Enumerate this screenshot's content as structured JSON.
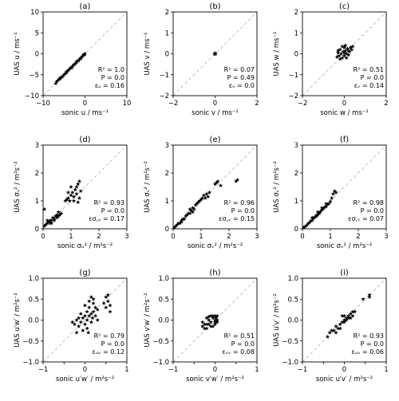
{
  "chart_data": [
    {
      "type": "scatter",
      "panel": "(a)",
      "xlabel": "sonic u / ms⁻¹",
      "ylabel": "UAS u / ms⁻¹",
      "xlim": [
        -10,
        10
      ],
      "ylim": [
        -10,
        10
      ],
      "xticks": [
        -10,
        0,
        10
      ],
      "yticks": [
        -10,
        -5,
        0,
        5,
        10
      ],
      "xticklabels": [
        "−10",
        "0",
        "10"
      ],
      "yticklabels": [
        "−10",
        "−5",
        "0",
        "5",
        "10"
      ],
      "stats": [
        "R² = 1.0",
        "P = 0.0",
        "εᵤ = 0.16"
      ],
      "points": [
        [
          -7.0,
          -7.1
        ],
        [
          -6.8,
          -6.7
        ],
        [
          -6.5,
          -6.4
        ],
        [
          -6.2,
          -6.1
        ],
        [
          -6.0,
          -6.0
        ],
        [
          -5.7,
          -5.6
        ],
        [
          -5.4,
          -5.5
        ],
        [
          -5.1,
          -5.1
        ],
        [
          -4.8,
          -4.8
        ],
        [
          -4.5,
          -4.6
        ],
        [
          -4.2,
          -4.1
        ],
        [
          -3.9,
          -3.9
        ],
        [
          -3.6,
          -3.5
        ],
        [
          -3.3,
          -3.4
        ],
        [
          -3.0,
          -3.0
        ],
        [
          -2.7,
          -2.6
        ],
        [
          -2.4,
          -2.5
        ],
        [
          -2.1,
          -2.1
        ],
        [
          -1.8,
          -1.7
        ],
        [
          -1.5,
          -1.6
        ],
        [
          -1.2,
          -1.2
        ],
        [
          -0.9,
          -0.9
        ],
        [
          -0.6,
          -0.6
        ],
        [
          -0.4,
          -0.3
        ],
        [
          -0.2,
          -0.2
        ],
        [
          -0.1,
          -0.1
        ],
        [
          0.0,
          0.0
        ],
        [
          -5.9,
          -5.8
        ],
        [
          -4.4,
          -4.3
        ],
        [
          -3.1,
          -3.2
        ],
        [
          -2.0,
          -1.9
        ],
        [
          -1.0,
          -1.1
        ]
      ]
    },
    {
      "type": "scatter",
      "panel": "(b)",
      "xlabel": "sonic v / ms⁻¹",
      "ylabel": "UAS v / ms⁻¹",
      "xlim": [
        -2,
        2
      ],
      "ylim": [
        -2,
        2
      ],
      "xticks": [
        -2,
        0,
        2
      ],
      "yticks": [
        -2,
        -1,
        0,
        1,
        2
      ],
      "xticklabels": [
        "−2",
        "0",
        "2"
      ],
      "yticklabels": [
        "−2",
        "−1",
        "0",
        "1",
        "2"
      ],
      "stats": [
        "R² = 0.07",
        "P = 0.49",
        "εᵥ = 0.0"
      ],
      "points": [
        [
          0.0,
          0.0
        ],
        [
          0.02,
          0.01
        ],
        [
          -0.01,
          0.02
        ],
        [
          0.01,
          -0.01
        ],
        [
          -0.02,
          -0.01
        ],
        [
          0.0,
          0.02
        ]
      ]
    },
    {
      "type": "scatter",
      "panel": "(c)",
      "xlabel": "sonic w / ms⁻¹",
      "ylabel": "UAS w / ms⁻¹",
      "xlim": [
        -2,
        2
      ],
      "ylim": [
        -2,
        2
      ],
      "xticks": [
        -2,
        0,
        2
      ],
      "yticks": [
        -2,
        -1,
        0,
        1,
        2
      ],
      "xticklabels": [
        "−2",
        "0",
        "2"
      ],
      "yticklabels": [
        "−2",
        "−1",
        "0",
        "1",
        "2"
      ],
      "stats": [
        "R² = 0.51",
        "P = 0.0",
        "εᵥ = 0.14"
      ],
      "points": [
        [
          -0.35,
          -0.15
        ],
        [
          -0.3,
          0.05
        ],
        [
          -0.25,
          -0.1
        ],
        [
          -0.2,
          0.2
        ],
        [
          -0.15,
          0.0
        ],
        [
          -0.1,
          -0.2
        ],
        [
          -0.05,
          0.1
        ],
        [
          0.0,
          0.3
        ],
        [
          0.0,
          -0.1
        ],
        [
          0.05,
          0.15
        ],
        [
          0.1,
          0.0
        ],
        [
          0.15,
          0.25
        ],
        [
          0.2,
          -0.05
        ],
        [
          -0.1,
          0.35
        ],
        [
          0.25,
          0.1
        ],
        [
          0.3,
          0.3
        ],
        [
          0.35,
          0.2
        ],
        [
          -0.2,
          -0.25
        ],
        [
          0.05,
          0.4
        ],
        [
          0.1,
          -0.2
        ],
        [
          0.4,
          0.35
        ],
        [
          -0.3,
          0.15
        ],
        [
          0.2,
          0.15
        ],
        [
          0.0,
          0.05
        ]
      ]
    },
    {
      "type": "scatter",
      "panel": "(d)",
      "xlabel": "sonic σᵤ² / m²s⁻²",
      "ylabel": "UAS σᵤ² / m²s⁻²",
      "xlim": [
        0,
        3
      ],
      "ylim": [
        0,
        3
      ],
      "xticks": [
        0,
        1,
        2,
        3
      ],
      "yticks": [
        0,
        1,
        2,
        3
      ],
      "xticklabels": [
        "0",
        "1",
        "2",
        "3"
      ],
      "yticklabels": [
        "0",
        "1",
        "2",
        "3"
      ],
      "stats": [
        "R² = 0.93",
        "P = 0.0",
        "εσ,ᵤ = 0.17"
      ],
      "points": [
        [
          0.05,
          0.7
        ],
        [
          0.05,
          0.1
        ],
        [
          0.1,
          0.15
        ],
        [
          0.15,
          0.2
        ],
        [
          0.2,
          0.25
        ],
        [
          0.25,
          0.3
        ],
        [
          0.3,
          0.3
        ],
        [
          0.35,
          0.4
        ],
        [
          0.4,
          0.35
        ],
        [
          0.45,
          0.45
        ],
        [
          0.5,
          0.5
        ],
        [
          0.55,
          0.45
        ],
        [
          0.6,
          0.5
        ],
        [
          0.65,
          0.55
        ],
        [
          0.3,
          0.2
        ],
        [
          0.4,
          0.3
        ],
        [
          0.5,
          0.4
        ],
        [
          0.55,
          0.6
        ],
        [
          0.15,
          0.3
        ],
        [
          0.25,
          0.2
        ],
        [
          0.8,
          1.0
        ],
        [
          0.85,
          1.05
        ],
        [
          0.9,
          1.1
        ],
        [
          0.95,
          1.0
        ],
        [
          1.0,
          1.2
        ],
        [
          1.05,
          1.3
        ],
        [
          1.1,
          1.15
        ],
        [
          1.15,
          1.4
        ],
        [
          1.2,
          1.25
        ],
        [
          1.25,
          1.6
        ],
        [
          1.3,
          1.1
        ],
        [
          1.35,
          1.35
        ],
        [
          1.1,
          1.0
        ],
        [
          1.0,
          1.5
        ],
        [
          1.2,
          1.5
        ],
        [
          0.9,
          1.3
        ],
        [
          1.3,
          1.7
        ],
        [
          1.25,
          0.95
        ]
      ]
    },
    {
      "type": "scatter",
      "panel": "(e)",
      "xlabel": "sonic σᵥ² / m²s⁻²",
      "ylabel": "UAS σᵥ² / m²s⁻²",
      "xlim": [
        0,
        3
      ],
      "ylim": [
        0,
        3
      ],
      "xticks": [
        0,
        1,
        2,
        3
      ],
      "yticks": [
        0,
        1,
        2,
        3
      ],
      "xticklabels": [
        "0",
        "1",
        "2",
        "3"
      ],
      "yticklabels": [
        "0",
        "1",
        "2",
        "3"
      ],
      "stats": [
        "R² = 0.96",
        "P = 0.0",
        "εσ,ᵥ = 0.15"
      ],
      "points": [
        [
          0.05,
          0.05
        ],
        [
          0.1,
          0.1
        ],
        [
          0.15,
          0.15
        ],
        [
          0.2,
          0.2
        ],
        [
          0.25,
          0.2
        ],
        [
          0.3,
          0.3
        ],
        [
          0.35,
          0.35
        ],
        [
          0.4,
          0.35
        ],
        [
          0.45,
          0.45
        ],
        [
          0.5,
          0.5
        ],
        [
          0.55,
          0.55
        ],
        [
          0.6,
          0.55
        ],
        [
          0.65,
          0.65
        ],
        [
          0.7,
          0.75
        ],
        [
          0.75,
          0.7
        ],
        [
          0.8,
          0.85
        ],
        [
          0.85,
          0.9
        ],
        [
          0.9,
          0.95
        ],
        [
          1.0,
          1.05
        ],
        [
          1.05,
          1.1
        ],
        [
          1.1,
          1.2
        ],
        [
          1.15,
          1.1
        ],
        [
          1.2,
          1.25
        ],
        [
          1.25,
          1.15
        ],
        [
          1.3,
          1.3
        ],
        [
          1.5,
          1.6
        ],
        [
          1.55,
          1.65
        ],
        [
          1.6,
          1.7
        ],
        [
          1.7,
          1.55
        ],
        [
          2.25,
          1.7
        ],
        [
          2.3,
          1.75
        ],
        [
          0.3,
          0.25
        ],
        [
          0.6,
          0.7
        ],
        [
          0.7,
          0.6
        ],
        [
          0.95,
          1.0
        ]
      ]
    },
    {
      "type": "scatter",
      "panel": "(f)",
      "xlabel": "sonic σᵥ² / m²s⁻²",
      "ylabel": "UAS σᵥ² / m²s⁻²",
      "xlim": [
        0,
        3
      ],
      "ylim": [
        0,
        3
      ],
      "xticks": [
        0,
        1,
        2,
        3
      ],
      "yticks": [
        0,
        1,
        2,
        3
      ],
      "xticklabels": [
        "0",
        "1",
        "2",
        "3"
      ],
      "yticklabels": [
        "0",
        "1",
        "2",
        "3"
      ],
      "stats": [
        "R² = 0.98",
        "P = 0.0",
        "εσ,ᵥ = 0.07"
      ],
      "points": [
        [
          0.05,
          0.05
        ],
        [
          0.1,
          0.08
        ],
        [
          0.15,
          0.12
        ],
        [
          0.2,
          0.18
        ],
        [
          0.25,
          0.22
        ],
        [
          0.3,
          0.28
        ],
        [
          0.35,
          0.3
        ],
        [
          0.4,
          0.38
        ],
        [
          0.45,
          0.42
        ],
        [
          0.5,
          0.48
        ],
        [
          0.55,
          0.5
        ],
        [
          0.6,
          0.58
        ],
        [
          0.65,
          0.62
        ],
        [
          0.7,
          0.68
        ],
        [
          0.75,
          0.72
        ],
        [
          0.8,
          0.78
        ],
        [
          0.85,
          0.8
        ],
        [
          0.9,
          0.88
        ],
        [
          0.95,
          0.9
        ],
        [
          1.0,
          0.98
        ],
        [
          1.05,
          1.1
        ],
        [
          1.1,
          1.25
        ],
        [
          1.15,
          1.35
        ],
        [
          1.2,
          1.3
        ],
        [
          0.35,
          0.4
        ],
        [
          0.55,
          0.6
        ],
        [
          0.7,
          0.75
        ],
        [
          0.85,
          0.9
        ],
        [
          0.5,
          0.45
        ],
        [
          0.6,
          0.55
        ]
      ]
    },
    {
      "type": "scatter",
      "panel": "(g)",
      "xlabel": "sonic u′w′ / m²s⁻²",
      "ylabel": "UAS u′w′ / m²s⁻²",
      "xlim": [
        -1,
        1
      ],
      "ylim": [
        -1,
        1
      ],
      "xticks": [
        -1.0,
        -0.5,
        0.0,
        0.5,
        1.0
      ],
      "yticks": [
        -1.0,
        -0.5,
        0.0,
        0.5,
        1.0
      ],
      "xticklabels": [
        "−1",
        "",
        "0",
        "",
        "1"
      ],
      "yticklabels": [
        "−1.0",
        "−0.5",
        "0.0",
        "0.5",
        "1.0"
      ],
      "stats": [
        "R² = 0.79",
        "P = 0.0",
        "εᵤᵥ = 0.12"
      ],
      "points": [
        [
          -0.3,
          -0.05
        ],
        [
          -0.25,
          -0.1
        ],
        [
          -0.2,
          0.0
        ],
        [
          -0.15,
          -0.15
        ],
        [
          -0.1,
          -0.05
        ],
        [
          -0.05,
          0.05
        ],
        [
          0.0,
          -0.1
        ],
        [
          0.0,
          0.1
        ],
        [
          0.05,
          0.0
        ],
        [
          0.05,
          0.2
        ],
        [
          0.1,
          0.1
        ],
        [
          0.1,
          0.3
        ],
        [
          0.15,
          0.15
        ],
        [
          0.15,
          -0.05
        ],
        [
          0.2,
          0.2
        ],
        [
          0.2,
          0.4
        ],
        [
          0.25,
          0.1
        ],
        [
          0.25,
          0.3
        ],
        [
          0.3,
          0.25
        ],
        [
          -0.2,
          -0.3
        ],
        [
          -0.1,
          0.15
        ],
        [
          0.0,
          0.35
        ],
        [
          0.05,
          -0.2
        ],
        [
          0.1,
          0.45
        ],
        [
          0.15,
          0.55
        ],
        [
          0.2,
          0.5
        ],
        [
          -0.05,
          -0.25
        ],
        [
          0.3,
          0.0
        ],
        [
          0.5,
          0.55
        ],
        [
          0.55,
          0.45
        ],
        [
          0.6,
          0.35
        ],
        [
          0.5,
          0.3
        ],
        [
          0.55,
          0.6
        ],
        [
          0.6,
          0.2
        ],
        [
          0.45,
          0.4
        ],
        [
          -0.15,
          0.05
        ],
        [
          0.08,
          -0.3
        ],
        [
          0.18,
          0.05
        ]
      ]
    },
    {
      "type": "scatter",
      "panel": "(h)",
      "xlabel": "sonic v′w′ / m²s⁻²",
      "ylabel": "UAS v′w′ / m²s⁻²",
      "xlim": [
        -1,
        1
      ],
      "ylim": [
        -1,
        1
      ],
      "xticks": [
        -1.0,
        -0.5,
        0.0,
        0.5,
        1.0
      ],
      "yticks": [
        -1.0,
        -0.5,
        0.0,
        0.5,
        1.0
      ],
      "xticklabels": [
        "−1",
        "",
        "0",
        "",
        "1"
      ],
      "yticklabels": [
        "−1.0",
        "−0.5",
        "0.0",
        "0.5",
        "1.0"
      ],
      "stats": [
        "R² = 0.51",
        "P = 0.0",
        "εᵥᵥ = 0.08"
      ],
      "points": [
        [
          -0.3,
          -0.15
        ],
        [
          -0.25,
          -0.1
        ],
        [
          -0.2,
          -0.2
        ],
        [
          -0.15,
          0.0
        ],
        [
          -0.1,
          -0.05
        ],
        [
          -0.05,
          0.05
        ],
        [
          0.0,
          0.0
        ],
        [
          0.0,
          -0.1
        ],
        [
          0.05,
          0.1
        ],
        [
          -0.2,
          0.05
        ],
        [
          -0.1,
          0.1
        ],
        [
          0.0,
          0.1
        ],
        [
          -0.05,
          -0.15
        ],
        [
          0.05,
          0.0
        ],
        [
          -0.15,
          -0.1
        ],
        [
          -0.3,
          -0.05
        ],
        [
          -0.25,
          -0.2
        ],
        [
          -0.1,
          -0.15
        ],
        [
          0.0,
          -0.05
        ],
        [
          -0.05,
          0.1
        ],
        [
          0.05,
          -0.05
        ],
        [
          -0.2,
          -0.1
        ],
        [
          -0.15,
          0.08
        ],
        [
          0.02,
          0.05
        ]
      ]
    },
    {
      "type": "scatter",
      "panel": "(i)",
      "xlabel": "sonic u′v′ / m²s⁻²",
      "ylabel": "UAS u′v′ / m²s⁻²",
      "xlim": [
        -1,
        1
      ],
      "ylim": [
        -1,
        1
      ],
      "xticks": [
        -1.0,
        -0.5,
        0.0,
        0.5,
        1.0
      ],
      "yticks": [
        -1.0,
        -0.5,
        0.0,
        0.5,
        1.0
      ],
      "xticklabels": [
        "−1",
        "",
        "0",
        "",
        "1"
      ],
      "yticklabels": [
        "−1.0",
        "−0.5",
        "0.0",
        "0.5",
        "1.0"
      ],
      "stats": [
        "R² = 0.93",
        "P = 0.0",
        "εᵤᵥ = 0.06"
      ],
      "points": [
        [
          -0.4,
          -0.4
        ],
        [
          -0.35,
          -0.3
        ],
        [
          -0.3,
          -0.25
        ],
        [
          -0.25,
          -0.25
        ],
        [
          -0.2,
          -0.15
        ],
        [
          -0.15,
          -0.2
        ],
        [
          -0.1,
          -0.1
        ],
        [
          -0.05,
          -0.05
        ],
        [
          0.0,
          0.0
        ],
        [
          0.0,
          -0.05
        ],
        [
          0.05,
          0.05
        ],
        [
          0.05,
          0.0
        ],
        [
          0.1,
          0.1
        ],
        [
          0.1,
          0.05
        ],
        [
          0.15,
          0.15
        ],
        [
          0.2,
          0.1
        ],
        [
          0.25,
          0.2
        ],
        [
          -0.2,
          -0.3
        ],
        [
          -0.1,
          -0.2
        ],
        [
          0.0,
          0.1
        ],
        [
          0.15,
          0.05
        ],
        [
          0.45,
          0.5
        ],
        [
          0.6,
          0.55
        ],
        [
          0.6,
          0.6
        ],
        [
          -0.05,
          0.1
        ],
        [
          0.2,
          0.2
        ]
      ]
    }
  ]
}
